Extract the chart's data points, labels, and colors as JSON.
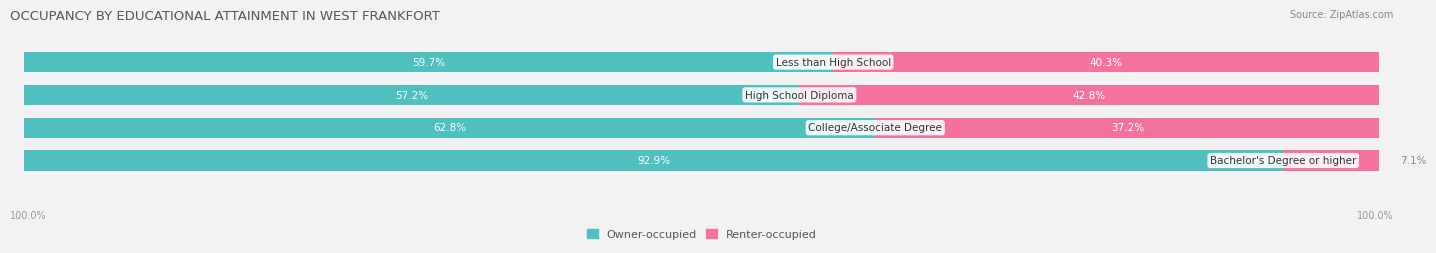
{
  "title": "OCCUPANCY BY EDUCATIONAL ATTAINMENT IN WEST FRANKFORT",
  "source": "Source: ZipAtlas.com",
  "categories": [
    "Less than High School",
    "High School Diploma",
    "College/Associate Degree",
    "Bachelor's Degree or higher"
  ],
  "owner_pct": [
    59.7,
    57.2,
    62.8,
    92.9
  ],
  "renter_pct": [
    40.3,
    42.8,
    37.2,
    7.1
  ],
  "owner_color": "#50BFBF",
  "renter_color": "#F472A0",
  "owner_color_light": "#C8E8E8",
  "renter_color_light": "#FAC8D8",
  "bg_color": "#F2F2F2",
  "row_bg_color": "#E8E8E8",
  "title_fontsize": 9.5,
  "source_fontsize": 7,
  "label_fontsize": 7.5,
  "legend_fontsize": 8,
  "axis_label_fontsize": 7,
  "bar_height": 0.62,
  "left_axis_label": "100.0%",
  "right_axis_label": "100.0%"
}
